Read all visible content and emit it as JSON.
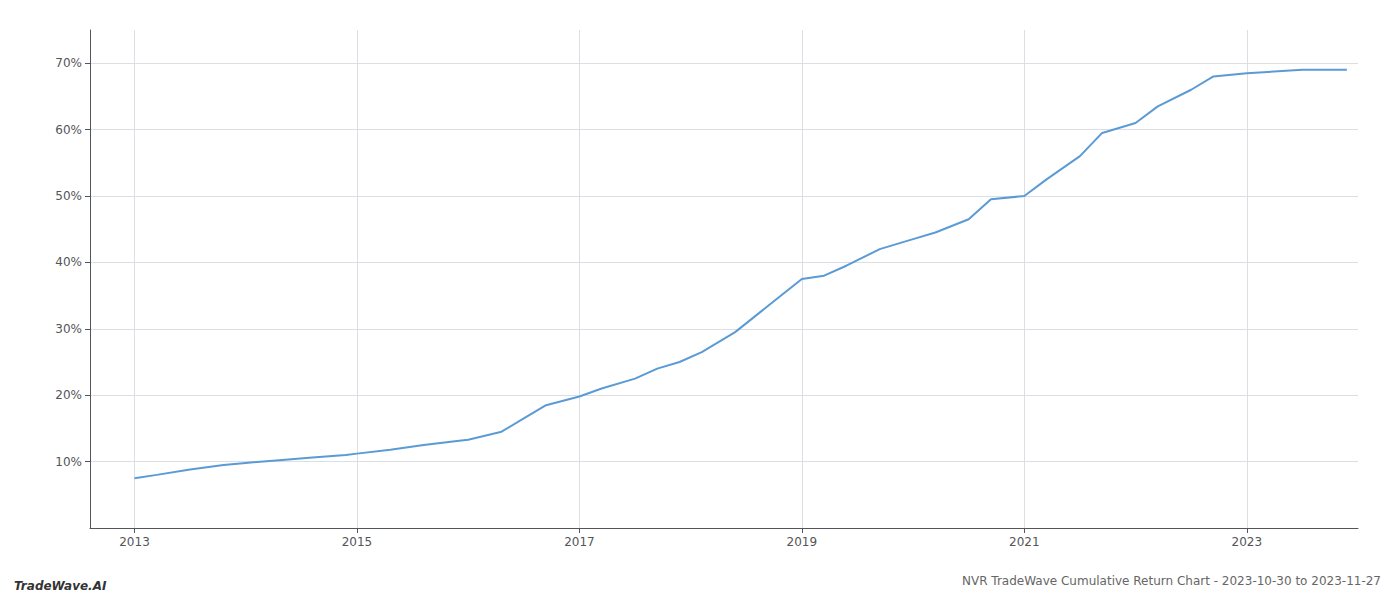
{
  "chart_data": {
    "type": "line",
    "title": "NVR TradeWave Cumulative Return Chart - 2023-10-30 to 2023-11-27",
    "annotations": [
      "TradeWave.AI"
    ],
    "color": "#5b9bd5",
    "grid": true,
    "x": [
      2013.0,
      2013.2,
      2013.5,
      2013.8,
      2014.0,
      2014.3,
      2014.6,
      2014.9,
      2015.0,
      2015.3,
      2015.6,
      2015.9,
      2016.0,
      2016.3,
      2016.5,
      2016.7,
      2017.0,
      2017.2,
      2017.5,
      2017.7,
      2017.9,
      2018.1,
      2018.4,
      2018.7,
      2019.0,
      2019.2,
      2019.4,
      2019.7,
      2020.0,
      2020.2,
      2020.5,
      2020.7,
      2021.0,
      2021.2,
      2021.5,
      2021.7,
      2022.0,
      2022.2,
      2022.5,
      2022.7,
      2023.0,
      2023.5,
      2023.9
    ],
    "values": [
      7.5,
      8.0,
      8.8,
      9.5,
      9.8,
      10.2,
      10.6,
      11.0,
      11.2,
      11.8,
      12.5,
      13.1,
      13.3,
      14.5,
      16.5,
      18.5,
      19.8,
      21.0,
      22.5,
      24.0,
      25.0,
      26.5,
      29.5,
      33.5,
      37.5,
      38.0,
      39.5,
      42.0,
      43.5,
      44.5,
      46.5,
      49.5,
      50.0,
      52.5,
      56.0,
      59.5,
      61.0,
      63.5,
      66.0,
      68.0,
      68.5,
      69.0,
      69.0
    ],
    "xlim": [
      2012.6,
      2024.0
    ],
    "xticks": [
      2013,
      2015,
      2017,
      2019,
      2021,
      2023
    ],
    "ylim": [
      0,
      75
    ],
    "yticks": [
      {
        "value": 10,
        "label": "10%"
      },
      {
        "value": 20,
        "label": "20%"
      },
      {
        "value": 30,
        "label": "30%"
      },
      {
        "value": 40,
        "label": "40%"
      },
      {
        "value": 50,
        "label": "50%"
      },
      {
        "value": 60,
        "label": "60%"
      },
      {
        "value": 70,
        "label": "70%"
      }
    ]
  }
}
